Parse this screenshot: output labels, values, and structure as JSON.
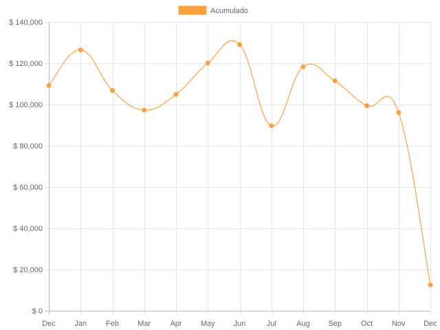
{
  "chart_data": {
    "type": "line",
    "title": "",
    "xlabel": "",
    "ylabel": "",
    "categories": [
      "Dec",
      "Jan",
      "Feb",
      "Mar",
      "Apr",
      "May",
      "Jun",
      "Jul",
      "Aug",
      "Sep",
      "Oct",
      "Nov",
      "Dec"
    ],
    "series": [
      {
        "name": "Acumulado",
        "color": "#ffa040",
        "values": [
          109200,
          126500,
          106800,
          97300,
          104900,
          120100,
          129100,
          89700,
          118300,
          111400,
          99400,
          96100,
          12500
        ]
      }
    ],
    "ylim": [
      0,
      140000
    ],
    "yticks": [
      0,
      20000,
      40000,
      60000,
      80000,
      100000,
      120000,
      140000
    ],
    "ytick_labels": [
      "$ 0",
      "$ 20,000",
      "$ 40,000",
      "$ 60,000",
      "$ 80,000",
      "$ 100,000",
      "$ 120,000",
      "$ 140,000"
    ],
    "grid": true,
    "legend_position": "top-center",
    "curve": "smooth"
  }
}
